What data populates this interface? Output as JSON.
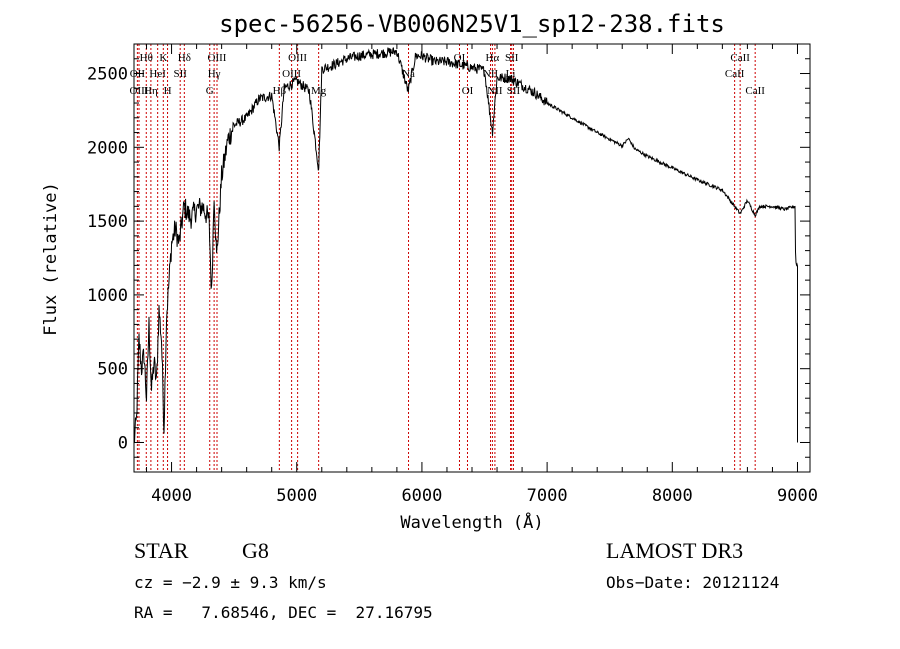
{
  "chart_data": {
    "type": "line",
    "title": "spec-56256-VB006N25V1_sp12-238.fits",
    "xlabel": "Wavelength (Å)",
    "ylabel": "Flux (relative)",
    "xlim": [
      3700,
      9100
    ],
    "ylim": [
      -200,
      2700
    ],
    "xticks": [
      4000,
      5000,
      6000,
      7000,
      8000,
      9000
    ],
    "yticks": [
      0,
      500,
      1000,
      1500,
      2000,
      2500
    ],
    "series": [
      {
        "name": "flux",
        "x": [
          3700,
          3720,
          3740,
          3760,
          3780,
          3800,
          3820,
          3840,
          3860,
          3880,
          3900,
          3920,
          3940,
          3960,
          3980,
          4000,
          4030,
          4060,
          4100,
          4150,
          4200,
          4250,
          4300,
          4320,
          4340,
          4360,
          4400,
          4450,
          4500,
          4600,
          4700,
          4800,
          4861,
          4900,
          5000,
          5100,
          5175,
          5200,
          5300,
          5400,
          5500,
          5600,
          5700,
          5800,
          5890,
          5950,
          6000,
          6100,
          6200,
          6300,
          6400,
          6500,
          6563,
          6600,
          6700,
          6800,
          6900,
          7000,
          7200,
          7400,
          7600,
          7650,
          7700,
          7800,
          8000,
          8200,
          8400,
          8498,
          8542,
          8600,
          8662,
          8700,
          8800,
          8900,
          8980,
          8985,
          9000
        ],
        "y": [
          0,
          150,
          700,
          500,
          600,
          300,
          800,
          350,
          550,
          400,
          900,
          700,
          100,
          850,
          1100,
          1350,
          1450,
          1350,
          1600,
          1520,
          1580,
          1600,
          1500,
          1000,
          1700,
          1250,
          1800,
          2050,
          2150,
          2200,
          2330,
          2350,
          2000,
          2400,
          2450,
          2380,
          1850,
          2530,
          2560,
          2600,
          2620,
          2630,
          2640,
          2650,
          2380,
          2620,
          2620,
          2580,
          2580,
          2560,
          2540,
          2520,
          2100,
          2470,
          2470,
          2420,
          2370,
          2300,
          2200,
          2100,
          2010,
          2060,
          1990,
          1940,
          1860,
          1780,
          1710,
          1600,
          1550,
          1640,
          1540,
          1600,
          1600,
          1580,
          1600,
          1220,
          1200
        ]
      }
    ],
    "spectral_lines": [
      {
        "name": "Hθ",
        "wavelength": 3798,
        "row": 1
      },
      {
        "name": "OII",
        "wavelength": 3727,
        "row": 2
      },
      {
        "name": "OIII",
        "wavelength": 3740,
        "row": 3
      },
      {
        "name": "Hη",
        "wavelength": 3835,
        "row": 3
      },
      {
        "name": "K",
        "wavelength": 3934,
        "row": 1
      },
      {
        "name": "HeI",
        "wavelength": 3889,
        "row": 2
      },
      {
        "name": "SII",
        "wavelength": 4069,
        "row": 2
      },
      {
        "name": "H",
        "wavelength": 3968,
        "row": 3
      },
      {
        "name": "Hδ",
        "wavelength": 4102,
        "row": 1
      },
      {
        "name": "OIII",
        "wavelength": 4363,
        "row": 1
      },
      {
        "name": "Hγ",
        "wavelength": 4340,
        "row": 2
      },
      {
        "name": "G",
        "wavelength": 4305,
        "row": 3
      },
      {
        "name": "OIII",
        "wavelength": 5007,
        "row": 1
      },
      {
        "name": "OIII",
        "wavelength": 4959,
        "row": 2
      },
      {
        "name": "Hβ",
        "wavelength": 4861,
        "row": 3
      },
      {
        "name": "Mg",
        "wavelength": 5175,
        "row": 3
      },
      {
        "name": "Na",
        "wavelength": 5893,
        "row": 2
      },
      {
        "name": "OI",
        "wavelength": 6300,
        "row": 1
      },
      {
        "name": "OI",
        "wavelength": 6364,
        "row": 3
      },
      {
        "name": "Hα",
        "wavelength": 6563,
        "row": 1
      },
      {
        "name": "SII",
        "wavelength": 6717,
        "row": 1
      },
      {
        "name": "NII",
        "wavelength": 6548,
        "row": 2
      },
      {
        "name": "Li",
        "wavelength": 6708,
        "row": 2
      },
      {
        "name": "NII",
        "wavelength": 6583,
        "row": 3
      },
      {
        "name": "SII",
        "wavelength": 6731,
        "row": 3
      },
      {
        "name": "CaII",
        "wavelength": 8542,
        "row": 1
      },
      {
        "name": "CaII",
        "wavelength": 8498,
        "row": 2
      },
      {
        "name": "CaII",
        "wavelength": 8662,
        "row": 3
      }
    ],
    "line_color": "#cc0000",
    "data_color": "#000000"
  },
  "info": {
    "class_label": "STAR",
    "subclass": "G8",
    "survey": "LAMOST DR3",
    "cz_text": "cz = −2.9 ± 9.3 km/s",
    "obs_date_text": "Obs−Date: 20121124",
    "coords_text": "RA =   7.68546, DEC =  27.16795"
  }
}
